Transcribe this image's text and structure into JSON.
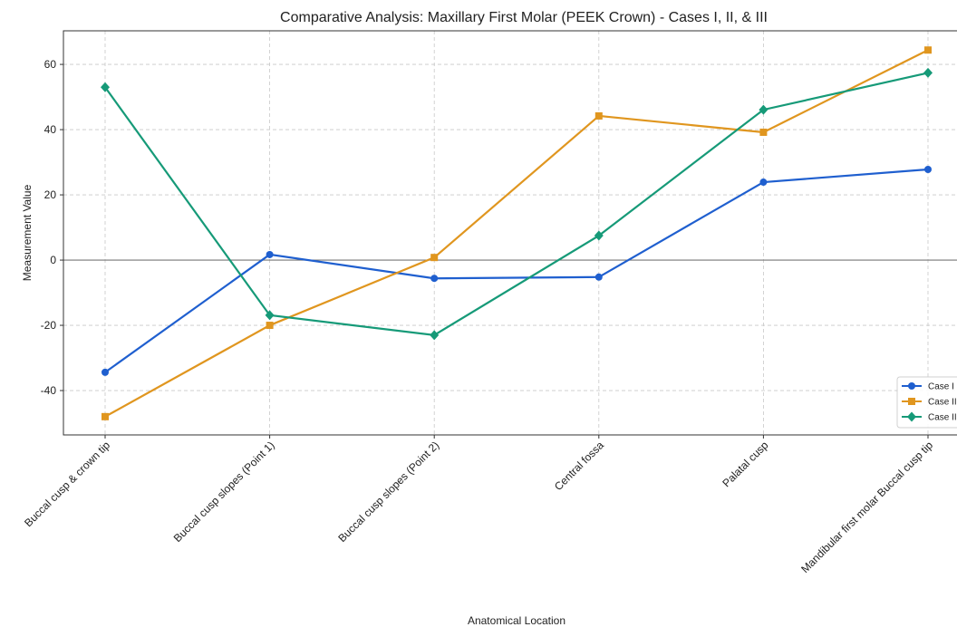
{
  "chart_data": {
    "type": "line",
    "title": "Comparative Analysis: Maxillary First Molar (PEEK Crown) - Cases I, II, & III",
    "xlabel": "Anatomical Location",
    "ylabel": "Measurement Value",
    "categories": [
      "Buccal cusp & crown tip",
      "Buccal cusp slopes (Point 1)",
      "Buccal cusp slopes (Point 2)",
      "Central fossa",
      "Palatal cusp",
      "Mandibular first molar Buccal cusp tip"
    ],
    "series": [
      {
        "name": "Case I",
        "color": "#1f5fcf",
        "marker": "circle",
        "values": [
          -34.4,
          1.7,
          -5.6,
          -5.2,
          23.9,
          27.8
        ]
      },
      {
        "name": "Case II",
        "color": "#e0961f",
        "marker": "square",
        "values": [
          -48,
          -20,
          0.8,
          44.2,
          39.2,
          64.4
        ]
      },
      {
        "name": "Case III",
        "color": "#169a78",
        "marker": "diamond",
        "values": [
          53,
          -16.9,
          -23,
          7.5,
          46.1,
          57.4
        ]
      }
    ],
    "ylim": [
      -53.6,
      70.3
    ],
    "yticks": [
      -40,
      -20,
      0,
      20,
      40,
      60
    ],
    "hline": 0,
    "grid": true,
    "legend": "lower right"
  }
}
